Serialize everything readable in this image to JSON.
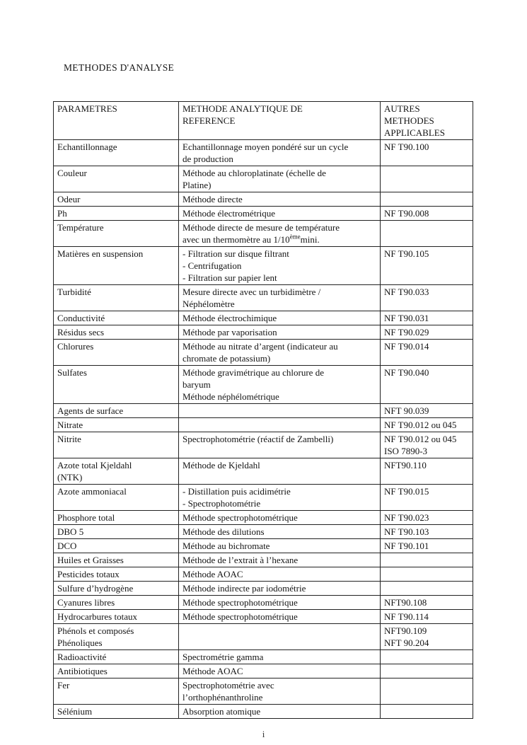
{
  "page": {
    "title": "METHODES D'ANALYSE",
    "footer_page_marker": "i",
    "background_color": "#ffffff",
    "text_color": "#151515",
    "border_color": "#222222"
  },
  "table": {
    "headers": [
      "PARAMETRES",
      "METHODE ANALYTIQUE DE\nREFERENCE",
      "AUTRES\nMETHODES\nAPPLICABLES"
    ],
    "rows": [
      {
        "parametre": "Echantillonnage",
        "methode": "Echantillonnage moyen pondéré sur un cycle\nde production",
        "autres": "NF T90.100"
      },
      {
        "parametre": "Couleur",
        "methode": "Méthode au chloroplatinate (échelle de\nPlatine)",
        "autres": ""
      },
      {
        "parametre": "Odeur",
        "methode": "Méthode directe",
        "autres": ""
      },
      {
        "parametre": "Ph",
        "methode": "Méthode électrométrique",
        "autres": "NF T90.008"
      },
      {
        "parametre": "Température",
        "methode": "Méthode directe de mesure de température\navec un thermomètre au 1/10^{ème}mini.",
        "autres": ""
      },
      {
        "parametre": "Matières en suspension",
        "methode": "- Filtration sur disque filtrant\n- Centrifugation\n- Filtration sur papier lent",
        "autres": "NF T90.105"
      },
      {
        "parametre": "Turbidité",
        "methode": "Mesure directe avec un turbidimètre /\nNéphélomètre",
        "autres": "NF T90.033"
      },
      {
        "parametre": "Conductivité",
        "methode": "Méthode électrochimique",
        "autres": "NF T90.031"
      },
      {
        "parametre": "Résidus secs",
        "methode": "Méthode par vaporisation",
        "autres": "NF T90.029"
      },
      {
        "parametre": "Chlorures",
        "methode": "Méthode au nitrate d’argent (indicateur au\nchromate de potassium)",
        "autres": "NF T90.014"
      },
      {
        "parametre": "Sulfates",
        "methode": "Méthode gravimétrique au chlorure de\nbaryum\nMéthode néphélométrique",
        "autres": "NF T90.040"
      },
      {
        "parametre": "Agents de surface",
        "methode": "",
        "autres": "NFT 90.039"
      },
      {
        "parametre": "Nitrate",
        "methode": "",
        "autres": "NF T90.012 ou 045"
      },
      {
        "parametre": "Nitrite",
        "methode": "Spectrophotométrie (réactif de Zambelli)",
        "autres": "NF T90.012 ou 045\nISO 7890-3"
      },
      {
        "parametre": "Azote total Kjeldahl\n(NTK)",
        "methode": "Méthode de Kjeldahl",
        "autres": "NFT90.110"
      },
      {
        "parametre": "Azote ammoniacal",
        "methode": "- Distillation puis acidimétrie\n- Spectrophotométrie",
        "autres": "NF T90.015"
      },
      {
        "parametre": "Phosphore total",
        "methode": "Méthode spectrophotométrique",
        "autres": "NF T90.023"
      },
      {
        "parametre": "DBO 5",
        "methode": "Méthode des dilutions",
        "autres": "NF T90.103"
      },
      {
        "parametre": "DCO",
        "methode": "Méthode au bichromate",
        "autres": "NF T90.101"
      },
      {
        "parametre": "Huiles et Graisses",
        "methode": "Méthode de l’extrait à l’hexane",
        "autres": ""
      },
      {
        "parametre": "Pesticides totaux",
        "methode": "Méthode AOAC",
        "autres": ""
      },
      {
        "parametre": "Sulfure d’hydrogène",
        "methode": "Méthode indirecte par iodométrie",
        "autres": ""
      },
      {
        "parametre": "Cyanures libres",
        "methode": "Méthode spectrophotométrique",
        "autres": "NFT90.108"
      },
      {
        "parametre": "Hydrocarbures totaux",
        "methode": "Méthode spectrophotométrique",
        "autres": "NF T90.114"
      },
      {
        "parametre": "Phénols et composés\nPhénoliques",
        "methode": "",
        "autres": "NFT90.109\nNFT 90.204"
      },
      {
        "parametre": "Radioactivité",
        "methode": "Spectrométrie gamma",
        "autres": ""
      },
      {
        "parametre": "Antibiotiques",
        "methode": "Méthode AOAC",
        "autres": ""
      },
      {
        "parametre": "Fer",
        "methode": "Spectrophotométrie avec\nl’orthophénanthroline",
        "autres": ""
      },
      {
        "parametre": "Sélénium",
        "methode": "Absorption atomique",
        "autres": ""
      }
    ]
  }
}
